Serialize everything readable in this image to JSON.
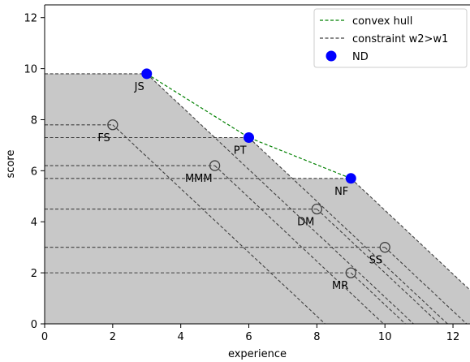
{
  "chart_data": {
    "type": "scatter",
    "xlabel": "experience",
    "ylabel": "score",
    "xlim": [
      0,
      12.5
    ],
    "ylim": [
      0,
      12.5
    ],
    "xticks": [
      0,
      2,
      4,
      6,
      8,
      10,
      12
    ],
    "yticks": [
      0,
      2,
      4,
      6,
      8,
      10,
      12
    ],
    "constraint_slope": -1.25,
    "points": [
      {
        "label": "JS",
        "x": 3,
        "y": 9.8,
        "nd": true
      },
      {
        "label": "PT",
        "x": 6,
        "y": 7.3,
        "nd": true
      },
      {
        "label": "NF",
        "x": 9,
        "y": 5.7,
        "nd": true
      },
      {
        "label": "FS",
        "x": 2,
        "y": 7.8,
        "nd": false
      },
      {
        "label": "MMM",
        "x": 5,
        "y": 6.2,
        "nd": false
      },
      {
        "label": "DM",
        "x": 8,
        "y": 4.5,
        "nd": false
      },
      {
        "label": "SS",
        "x": 10,
        "y": 3.0,
        "nd": false
      },
      {
        "label": "MR",
        "x": 9,
        "y": 2.0,
        "nd": false
      }
    ],
    "convex_hull": [
      [
        3,
        9.8
      ],
      [
        6,
        7.3
      ],
      [
        9,
        5.7
      ]
    ],
    "legend": {
      "position": "top-right",
      "entries": [
        {
          "label": "convex hull",
          "color": "#008000",
          "style": "dashed-line"
        },
        {
          "label": "constraint w2>w1",
          "color": "#404040",
          "style": "dashed-line"
        },
        {
          "label": "ND",
          "color": "#0000ff",
          "style": "marker"
        }
      ]
    },
    "colors": {
      "nd_fill": "#0000ff",
      "dominated_stroke": "#404040",
      "region_fill": "#c8c8c8",
      "hull": "#008000",
      "constraint": "#404040"
    }
  }
}
